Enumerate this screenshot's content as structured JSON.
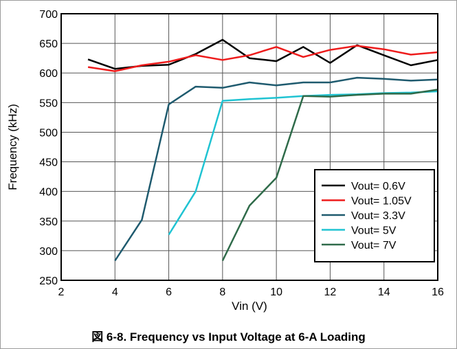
{
  "caption": "図 6-8. Frequency vs Input Voltage at 6-A Loading",
  "chart_data": {
    "type": "line",
    "xlabel": "Vin (V)",
    "ylabel": "Frequency (kHz)",
    "xlim": [
      2,
      16
    ],
    "ylim": [
      250,
      700
    ],
    "xticks": [
      2,
      4,
      6,
      8,
      10,
      12,
      14,
      16
    ],
    "yticks": [
      250,
      300,
      350,
      400,
      450,
      500,
      550,
      600,
      650,
      700
    ],
    "grid": true,
    "legend_position": "bottom-right",
    "series": [
      {
        "name": "Vout= 0.6V",
        "color": "#000000",
        "x": [
          3,
          4,
          5,
          6,
          7,
          8,
          9,
          10,
          11,
          12,
          13,
          14,
          15,
          16
        ],
        "y": [
          623,
          607,
          612,
          614,
          632,
          656,
          625,
          620,
          644,
          617,
          647,
          630,
          613,
          622
        ]
      },
      {
        "name": "Vout= 1.05V",
        "color": "#ee1c1c",
        "x": [
          3,
          4,
          5,
          6,
          7,
          8,
          9,
          10,
          11,
          12,
          13,
          14,
          15,
          16
        ],
        "y": [
          610,
          603,
          613,
          619,
          630,
          622,
          630,
          644,
          627,
          639,
          646,
          640,
          631,
          635
        ]
      },
      {
        "name": "Vout= 3.3V",
        "color": "#1e5a6e",
        "x": [
          4,
          5,
          6,
          7,
          8,
          9,
          10,
          11,
          12,
          13,
          14,
          15,
          16
        ],
        "y": [
          283,
          352,
          547,
          577,
          575,
          584,
          579,
          584,
          584,
          592,
          590,
          587,
          589
        ]
      },
      {
        "name": "Vout= 5V",
        "color": "#1fc3d2",
        "x": [
          6,
          7,
          8,
          9,
          10,
          11,
          12,
          13,
          14,
          15,
          16
        ],
        "y": [
          327,
          400,
          553,
          556,
          558,
          561,
          563,
          564,
          566,
          567,
          569
        ]
      },
      {
        "name": "Vout= 7V",
        "color": "#2f6b4a",
        "x": [
          8,
          9,
          10,
          11,
          12,
          13,
          14,
          15,
          16
        ],
        "y": [
          283,
          376,
          423,
          561,
          560,
          563,
          565,
          565,
          572
        ]
      }
    ]
  }
}
